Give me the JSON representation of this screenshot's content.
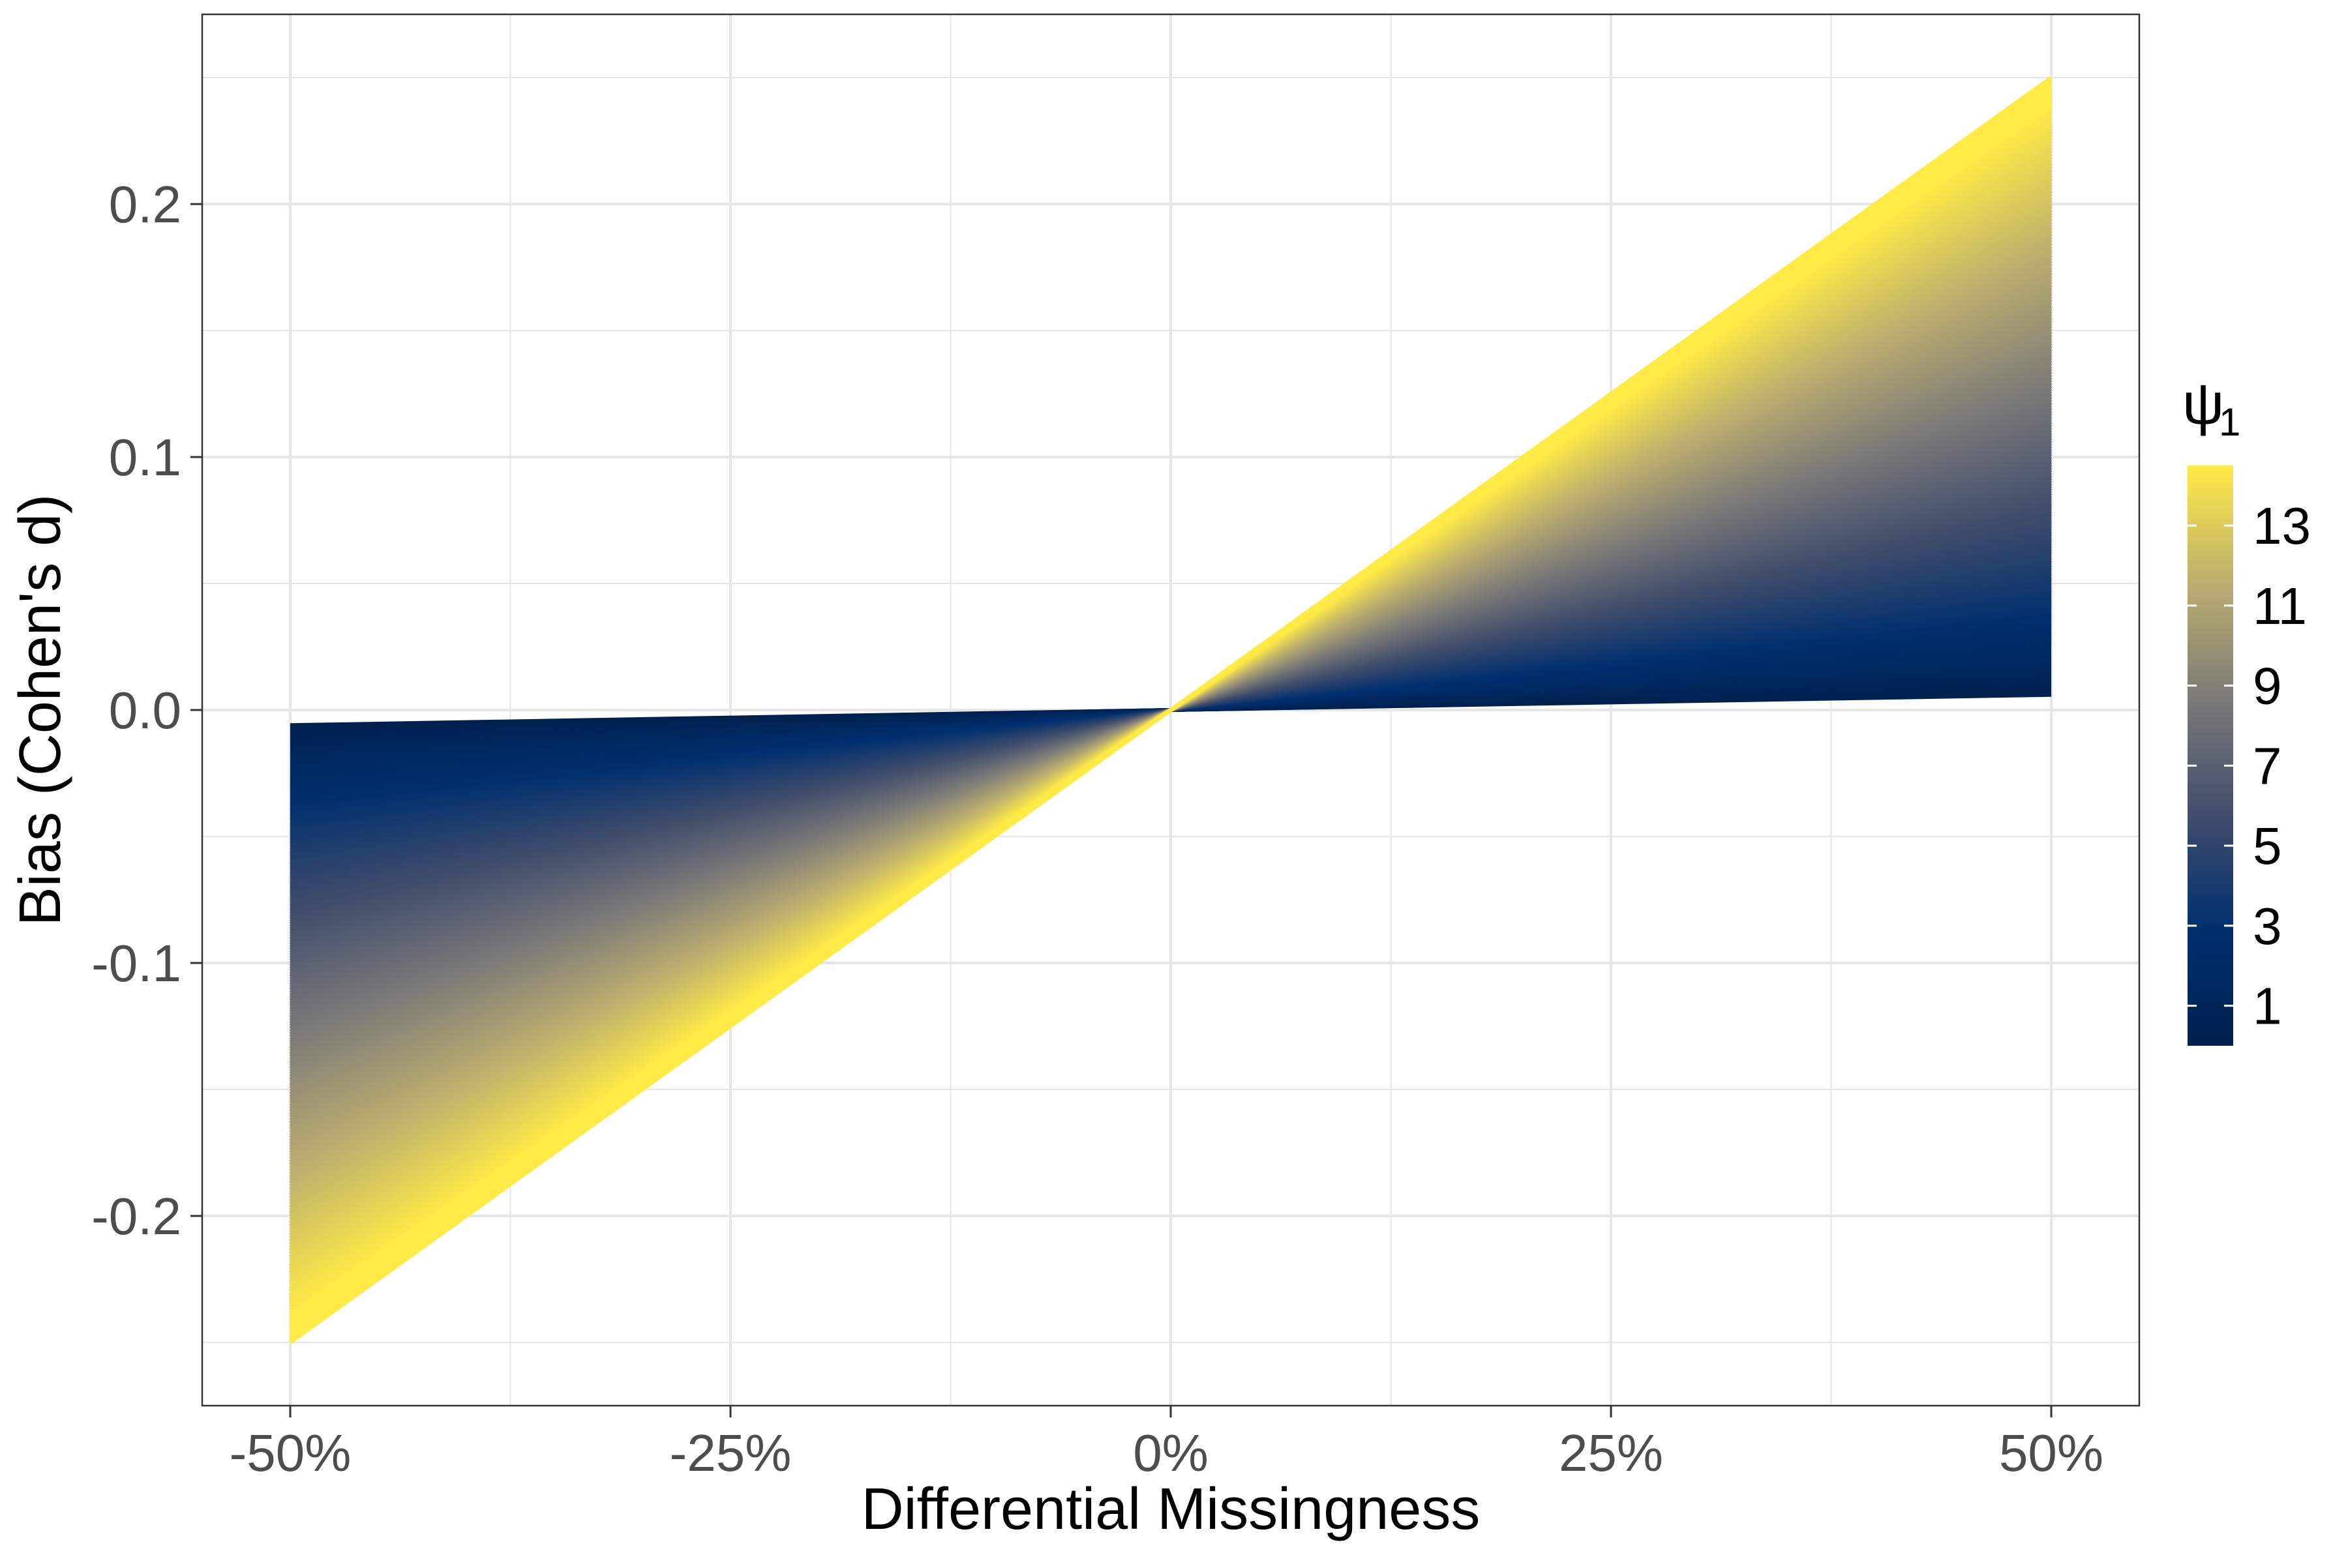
{
  "chart_data": {
    "type": "area",
    "title": "",
    "xlabel": "Differential Missingness",
    "ylabel": "Bias (Cohen's d)",
    "x_ticks": [
      {
        "value": -0.5,
        "label": "-50%"
      },
      {
        "value": -0.25,
        "label": "-25%"
      },
      {
        "value": 0,
        "label": "0%"
      },
      {
        "value": 0.25,
        "label": "25%"
      },
      {
        "value": 0.5,
        "label": "50%"
      }
    ],
    "y_ticks": [
      {
        "value": -0.2,
        "label": "-0.2"
      },
      {
        "value": -0.1,
        "label": "-0.1"
      },
      {
        "value": 0,
        "label": "0.0"
      },
      {
        "value": 0.1,
        "label": "0.1"
      },
      {
        "value": 0.2,
        "label": "0.2"
      }
    ],
    "xlim": [
      -0.55,
      0.55
    ],
    "ylim": [
      -0.275,
      0.275
    ],
    "grid": true,
    "series_description": "Family of lines bias = slope * differential missingness, colored by psi1",
    "lines": {
      "x_range": [
        -0.5,
        0.5
      ],
      "psi_range": [
        0,
        15
      ],
      "slope_at_min_psi": 0.012,
      "slope_at_max_psi": 0.5,
      "endpoints": {
        "left_min_psi_y": -0.006,
        "left_max_psi_y": -0.25,
        "right_min_psi_y": 0.006,
        "right_max_psi_y": 0.25
      }
    },
    "colorbar": {
      "title": "ψ",
      "title_subscript": "1",
      "ticks": [
        "1",
        "3",
        "5",
        "7",
        "9",
        "11",
        "13"
      ],
      "tick_values": [
        1,
        3,
        5,
        7,
        9,
        11,
        13
      ],
      "range": [
        0,
        14.5
      ],
      "colors": [
        "#00204D",
        "#00306F",
        "#414D6B",
        "#7C7B78",
        "#BCAF6F",
        "#FFEA46"
      ],
      "color_stops": [
        0,
        0.2,
        0.4,
        0.6,
        0.8,
        1
      ]
    },
    "colors": {
      "background": "#FFFFFF",
      "grid_major": "#E6E6E6",
      "grid_minor": "#F0F0F0",
      "panel_border": "#333333",
      "tick_text": "#4D4D4D",
      "axis_title": "#000000"
    }
  }
}
